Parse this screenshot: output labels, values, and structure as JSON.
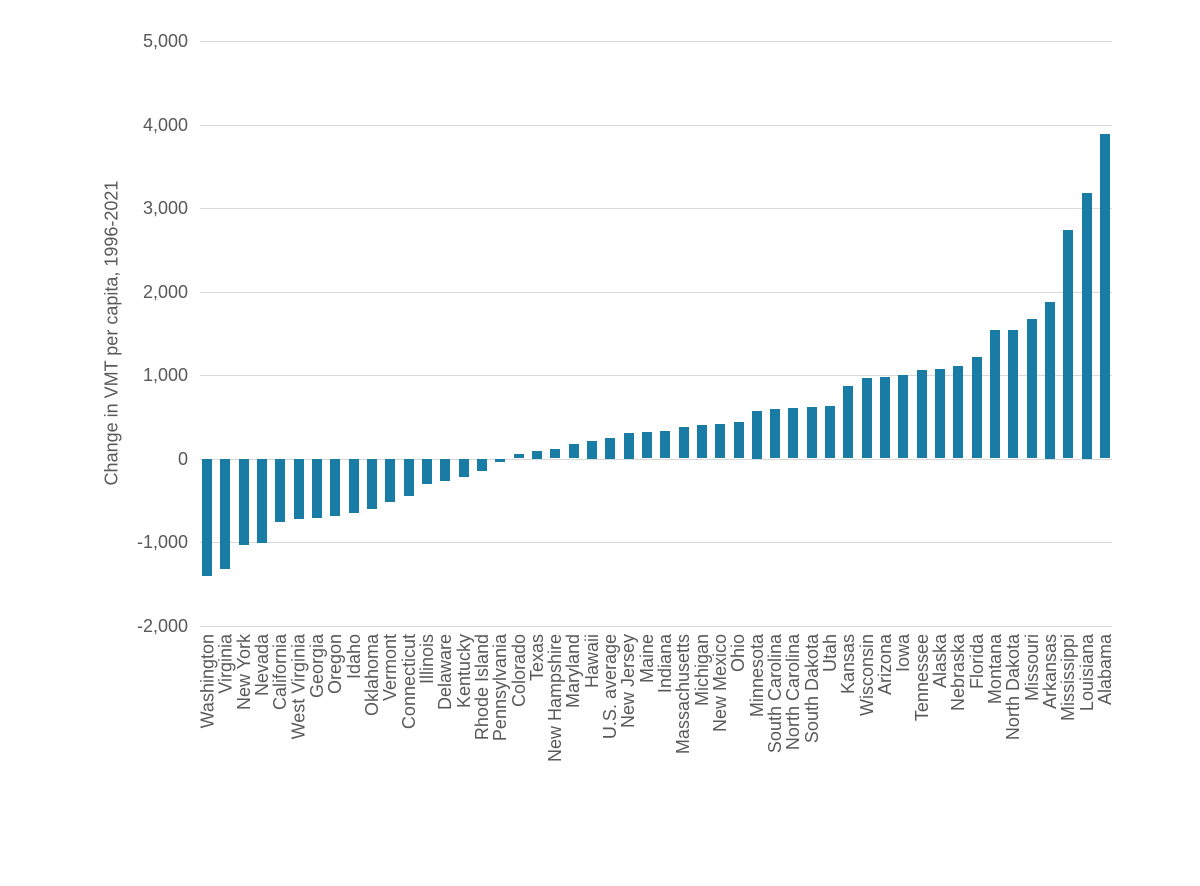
{
  "chart_data": {
    "type": "bar",
    "title": "",
    "xlabel": "",
    "ylabel": "Change in VMT per capita, 1996-2021",
    "ylim": [
      -2000,
      5000
    ],
    "grid": true,
    "legend_position": "none",
    "bar_color": "#187CA4",
    "yticks": [
      {
        "value": 5000,
        "label": "5,000"
      },
      {
        "value": 4000,
        "label": "4,000"
      },
      {
        "value": 3000,
        "label": "3,000"
      },
      {
        "value": 2000,
        "label": "2,000"
      },
      {
        "value": 1000,
        "label": "1,000"
      },
      {
        "value": 0,
        "label": "0"
      },
      {
        "value": -1000,
        "label": "-1,000"
      },
      {
        "value": -2000,
        "label": "-2,000"
      }
    ],
    "categories": [
      "Washington",
      "Virginia",
      "New York",
      "Nevada",
      "California",
      "West Virginia",
      "Georgia",
      "Oregon",
      "Idaho",
      "Oklahoma",
      "Vermont",
      "Connecticut",
      "Illinois",
      "Delaware",
      "Kentucky",
      "Rhode Island",
      "Pennsylvania",
      "Colorado",
      "Texas",
      "New Hampshire",
      "Maryland",
      "Hawaii",
      "U.S. average",
      "New Jersey",
      "Maine",
      "Indiana",
      "Massachusetts",
      "Michigan",
      "New Mexico",
      "Ohio",
      "Minnesota",
      "South Carolina",
      "North Carolina",
      "South Dakota",
      "Utah",
      "Kansas",
      "Wisconsin",
      "Arizona",
      "Iowa",
      "Tennessee",
      "Alaska",
      "Nebraska",
      "Florida",
      "Montana",
      "North Dakota",
      "Missouri",
      "Arkansas",
      "Mississippi",
      "Louisiana",
      "Alabama"
    ],
    "values": [
      -1410,
      -1320,
      -1030,
      -1010,
      -760,
      -725,
      -710,
      -690,
      -650,
      -600,
      -520,
      -450,
      -300,
      -270,
      -220,
      -150,
      -40,
      50,
      90,
      110,
      170,
      215,
      245,
      305,
      315,
      330,
      375,
      400,
      410,
      435,
      575,
      590,
      610,
      620,
      630,
      870,
      960,
      975,
      1005,
      1065,
      1075,
      1105,
      1220,
      1535,
      1540,
      1675,
      1880,
      2740,
      3180,
      3890
    ]
  }
}
